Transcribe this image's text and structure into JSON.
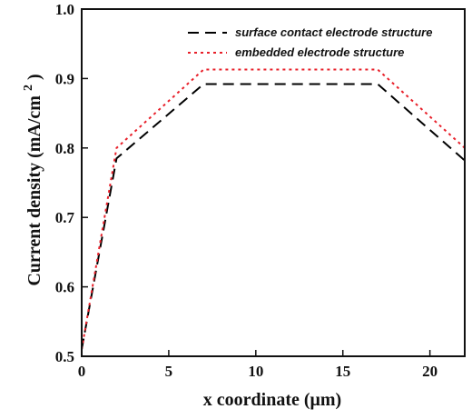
{
  "chart_data": {
    "type": "line",
    "xlabel": "x coordinate (μm)",
    "ylabel": "Current density (mA/cm",
    "ylabel_sup": "2",
    "ylabel_close": ")",
    "xlim": [
      0,
      22
    ],
    "ylim": [
      0.5,
      1.0
    ],
    "xticks": [
      "0",
      "5",
      "10",
      "15",
      "20"
    ],
    "xtick_values": [
      0,
      5,
      10,
      15,
      20
    ],
    "yticks": [
      "0.5",
      "0.6",
      "0.7",
      "0.8",
      "0.9",
      "1.0"
    ],
    "ytick_values": [
      0.5,
      0.6,
      0.7,
      0.8,
      0.9,
      1.0
    ],
    "grid": false,
    "legend_position": "top-right",
    "series": [
      {
        "name": "surface contact electrode structure",
        "color": "#000000",
        "dash": "long-dash",
        "x": [
          0,
          2,
          7,
          17,
          22
        ],
        "y": [
          0.51,
          0.785,
          0.892,
          0.892,
          0.782
        ]
      },
      {
        "name": "embedded electrode structure",
        "color": "#e8202a",
        "dash": "dotted",
        "x": [
          0,
          2,
          7,
          17,
          22
        ],
        "y": [
          0.51,
          0.8,
          0.913,
          0.913,
          0.8
        ]
      }
    ]
  }
}
